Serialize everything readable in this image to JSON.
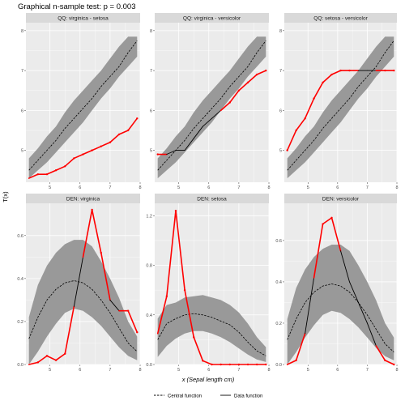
{
  "title": "Graphical n-sample test: p = 0.003",
  "xlabel": "x (Sepal length cm)",
  "ylabel": "T(x)",
  "legend": {
    "central": "Central function",
    "data": "Data function"
  },
  "colors": {
    "envelope": "#999999",
    "data_inside": "#000000",
    "data_outside": "#ff0000",
    "strip": "#d9d9d9",
    "panel_bg": "#ebebeb",
    "grid": "#ffffff"
  },
  "chart_data": [
    {
      "type": "line",
      "title": "QQ: virginica - setosa",
      "xlim": [
        4.2,
        8.0
      ],
      "ylim": [
        4.2,
        8.2
      ],
      "xticks": [
        5,
        6,
        7,
        8
      ],
      "yticks": [
        5,
        6,
        7,
        8
      ],
      "x": [
        4.3,
        4.6,
        4.9,
        5.2,
        5.5,
        5.8,
        6.1,
        6.4,
        6.7,
        7.0,
        7.3,
        7.6,
        7.9
      ],
      "central": [
        4.5,
        4.75,
        5.0,
        5.25,
        5.55,
        5.8,
        6.05,
        6.3,
        6.6,
        6.85,
        7.1,
        7.45,
        7.75
      ],
      "lower": [
        4.3,
        4.5,
        4.7,
        4.95,
        5.2,
        5.45,
        5.7,
        6.0,
        6.3,
        6.55,
        6.85,
        7.1,
        7.35
      ],
      "upper": [
        4.8,
        5.05,
        5.35,
        5.6,
        5.95,
        6.25,
        6.5,
        6.75,
        7.0,
        7.3,
        7.6,
        7.85,
        7.85
      ],
      "data": [
        4.3,
        4.4,
        4.4,
        4.5,
        4.6,
        4.8,
        4.9,
        5.0,
        5.1,
        5.2,
        5.4,
        5.5,
        5.8
      ]
    },
    {
      "type": "line",
      "title": "QQ: virginica - versicolor",
      "xlim": [
        4.2,
        8.0
      ],
      "ylim": [
        4.2,
        8.2
      ],
      "xticks": [
        5,
        6,
        7,
        8
      ],
      "yticks": [
        5,
        6,
        7,
        8
      ],
      "x": [
        4.3,
        4.6,
        4.9,
        5.2,
        5.5,
        5.8,
        6.1,
        6.4,
        6.7,
        7.0,
        7.3,
        7.6,
        7.9
      ],
      "central": [
        4.5,
        4.75,
        5.0,
        5.25,
        5.55,
        5.8,
        6.05,
        6.3,
        6.6,
        6.85,
        7.1,
        7.45,
        7.75
      ],
      "lower": [
        4.3,
        4.5,
        4.7,
        4.95,
        5.2,
        5.45,
        5.7,
        6.0,
        6.3,
        6.55,
        6.85,
        7.1,
        7.35
      ],
      "upper": [
        4.8,
        5.05,
        5.35,
        5.6,
        5.95,
        6.25,
        6.5,
        6.75,
        7.0,
        7.3,
        7.6,
        7.85,
        7.85
      ],
      "data": [
        4.9,
        4.9,
        5.0,
        5.0,
        5.3,
        5.6,
        5.8,
        6.0,
        6.2,
        6.5,
        6.7,
        6.9,
        7.0
      ]
    },
    {
      "type": "line",
      "title": "QQ: setosa - versicolor",
      "xlim": [
        4.2,
        8.0
      ],
      "ylim": [
        4.2,
        8.2
      ],
      "xticks": [
        5,
        6,
        7,
        8
      ],
      "yticks": [
        5,
        6,
        7,
        8
      ],
      "x": [
        4.3,
        4.6,
        4.9,
        5.2,
        5.5,
        5.8,
        6.1,
        6.4,
        6.7,
        7.0,
        7.3,
        7.6,
        7.9
      ],
      "central": [
        4.5,
        4.75,
        5.0,
        5.25,
        5.55,
        5.8,
        6.05,
        6.3,
        6.6,
        6.85,
        7.1,
        7.45,
        7.75
      ],
      "lower": [
        4.3,
        4.5,
        4.7,
        4.95,
        5.2,
        5.45,
        5.7,
        6.0,
        6.3,
        6.55,
        6.85,
        7.1,
        7.35
      ],
      "upper": [
        4.8,
        5.05,
        5.35,
        5.6,
        5.95,
        6.25,
        6.5,
        6.75,
        7.0,
        7.3,
        7.6,
        7.85,
        7.85
      ],
      "data": [
        5.0,
        5.5,
        5.8,
        6.3,
        6.7,
        6.9,
        7.0,
        7.0,
        7.0,
        7.0,
        7.0,
        7.0,
        7.0
      ]
    },
    {
      "type": "line",
      "title": "DEN: virginica",
      "xlim": [
        4.2,
        8.0
      ],
      "ylim": [
        0,
        0.75
      ],
      "xticks": [
        5,
        6,
        7,
        8
      ],
      "yticks": [
        0.0,
        0.2,
        0.4,
        0.6
      ],
      "x": [
        4.3,
        4.6,
        4.9,
        5.2,
        5.5,
        5.8,
        6.1,
        6.4,
        6.7,
        7.0,
        7.3,
        7.6,
        7.9
      ],
      "central": [
        0.12,
        0.22,
        0.3,
        0.35,
        0.38,
        0.39,
        0.38,
        0.35,
        0.3,
        0.24,
        0.17,
        0.1,
        0.06
      ],
      "lower": [
        0.0,
        0.06,
        0.13,
        0.19,
        0.24,
        0.26,
        0.25,
        0.22,
        0.18,
        0.13,
        0.08,
        0.04,
        0.02
      ],
      "upper": [
        0.22,
        0.37,
        0.46,
        0.52,
        0.56,
        0.58,
        0.58,
        0.55,
        0.48,
        0.4,
        0.31,
        0.2,
        0.13
      ],
      "data": [
        0.0,
        0.01,
        0.04,
        0.02,
        0.05,
        0.27,
        0.5,
        0.72,
        0.52,
        0.3,
        0.25,
        0.25,
        0.15
      ]
    },
    {
      "type": "line",
      "title": "DEN: setosa",
      "xlim": [
        4.2,
        8.0
      ],
      "ylim": [
        0,
        1.3
      ],
      "xticks": [
        5,
        6,
        7,
        8
      ],
      "yticks": [
        0.0,
        0.4,
        0.8,
        1.2
      ],
      "x": [
        4.3,
        4.6,
        4.9,
        5.2,
        5.5,
        5.8,
        6.1,
        6.4,
        6.7,
        7.0,
        7.3,
        7.6,
        7.9
      ],
      "central": [
        0.2,
        0.33,
        0.37,
        0.4,
        0.41,
        0.4,
        0.38,
        0.35,
        0.32,
        0.26,
        0.18,
        0.11,
        0.07
      ],
      "lower": [
        0.06,
        0.15,
        0.21,
        0.25,
        0.27,
        0.27,
        0.25,
        0.22,
        0.18,
        0.13,
        0.08,
        0.04,
        0.02
      ],
      "upper": [
        0.37,
        0.48,
        0.5,
        0.54,
        0.55,
        0.56,
        0.54,
        0.52,
        0.48,
        0.42,
        0.33,
        0.22,
        0.14
      ],
      "data": [
        0.25,
        0.55,
        1.24,
        0.6,
        0.22,
        0.03,
        0.0,
        0.0,
        0.0,
        0.0,
        0.0,
        0.0,
        0.0
      ]
    },
    {
      "type": "line",
      "title": "DEN: versicolor",
      "xlim": [
        4.2,
        8.0
      ],
      "ylim": [
        0,
        0.78
      ],
      "xticks": [
        5,
        6,
        7,
        8
      ],
      "yticks": [
        0.0,
        0.2,
        0.4,
        0.6
      ],
      "x": [
        4.3,
        4.6,
        4.9,
        5.2,
        5.5,
        5.8,
        6.1,
        6.4,
        6.7,
        7.0,
        7.3,
        7.6,
        7.9
      ],
      "central": [
        0.12,
        0.22,
        0.3,
        0.35,
        0.38,
        0.39,
        0.38,
        0.35,
        0.3,
        0.24,
        0.17,
        0.1,
        0.06
      ],
      "lower": [
        0.0,
        0.06,
        0.13,
        0.19,
        0.24,
        0.26,
        0.25,
        0.22,
        0.18,
        0.13,
        0.08,
        0.04,
        0.02
      ],
      "upper": [
        0.22,
        0.37,
        0.46,
        0.52,
        0.56,
        0.58,
        0.58,
        0.55,
        0.48,
        0.4,
        0.31,
        0.2,
        0.13
      ],
      "data": [
        0.0,
        0.02,
        0.15,
        0.42,
        0.68,
        0.71,
        0.55,
        0.4,
        0.3,
        0.2,
        0.09,
        0.02,
        0.0
      ]
    }
  ]
}
